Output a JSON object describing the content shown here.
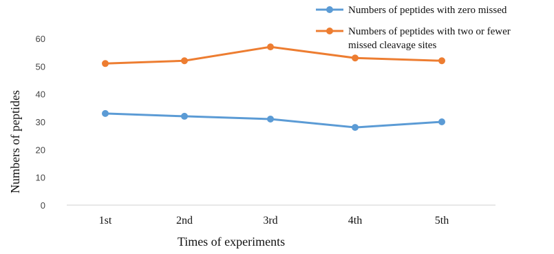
{
  "chart_data": {
    "type": "line",
    "xlabel": "Times of experiments",
    "ylabel": "Numbers of peptides",
    "categories": [
      "1st",
      "2nd",
      "3rd",
      "4th",
      "5th"
    ],
    "ylim": [
      0,
      60
    ],
    "yticks": [
      0,
      10,
      20,
      30,
      40,
      50,
      60
    ],
    "grid": false,
    "legend_position": "top-right",
    "series": [
      {
        "name": "Numbers of peptides with zero missed",
        "color": "#5b9bd5",
        "values": [
          33,
          32,
          31,
          28,
          30
        ]
      },
      {
        "name": "Numbers of peptides  with two or fewer missed cleavage sites",
        "legend_lines": [
          "Numbers of peptides  with two or fewer",
          "missed cleavage sites"
        ],
        "color": "#ed7d31",
        "values": [
          51,
          52,
          57,
          53,
          52
        ]
      }
    ]
  }
}
